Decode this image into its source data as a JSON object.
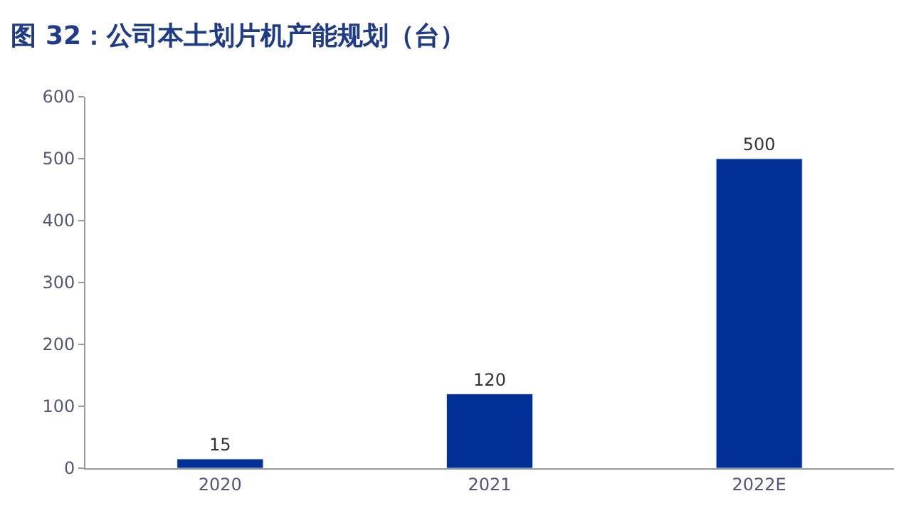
{
  "chart_data": {
    "type": "bar",
    "title": "图 32：公司本土划片机产能规划（台）",
    "categories": [
      "2020",
      "2021",
      "2022E"
    ],
    "values": [
      15,
      120,
      500
    ],
    "color": "#002f96",
    "ylim": [
      0,
      600
    ],
    "yticks": [
      0,
      100,
      200,
      300,
      400,
      500,
      600
    ],
    "data_labels": true
  }
}
